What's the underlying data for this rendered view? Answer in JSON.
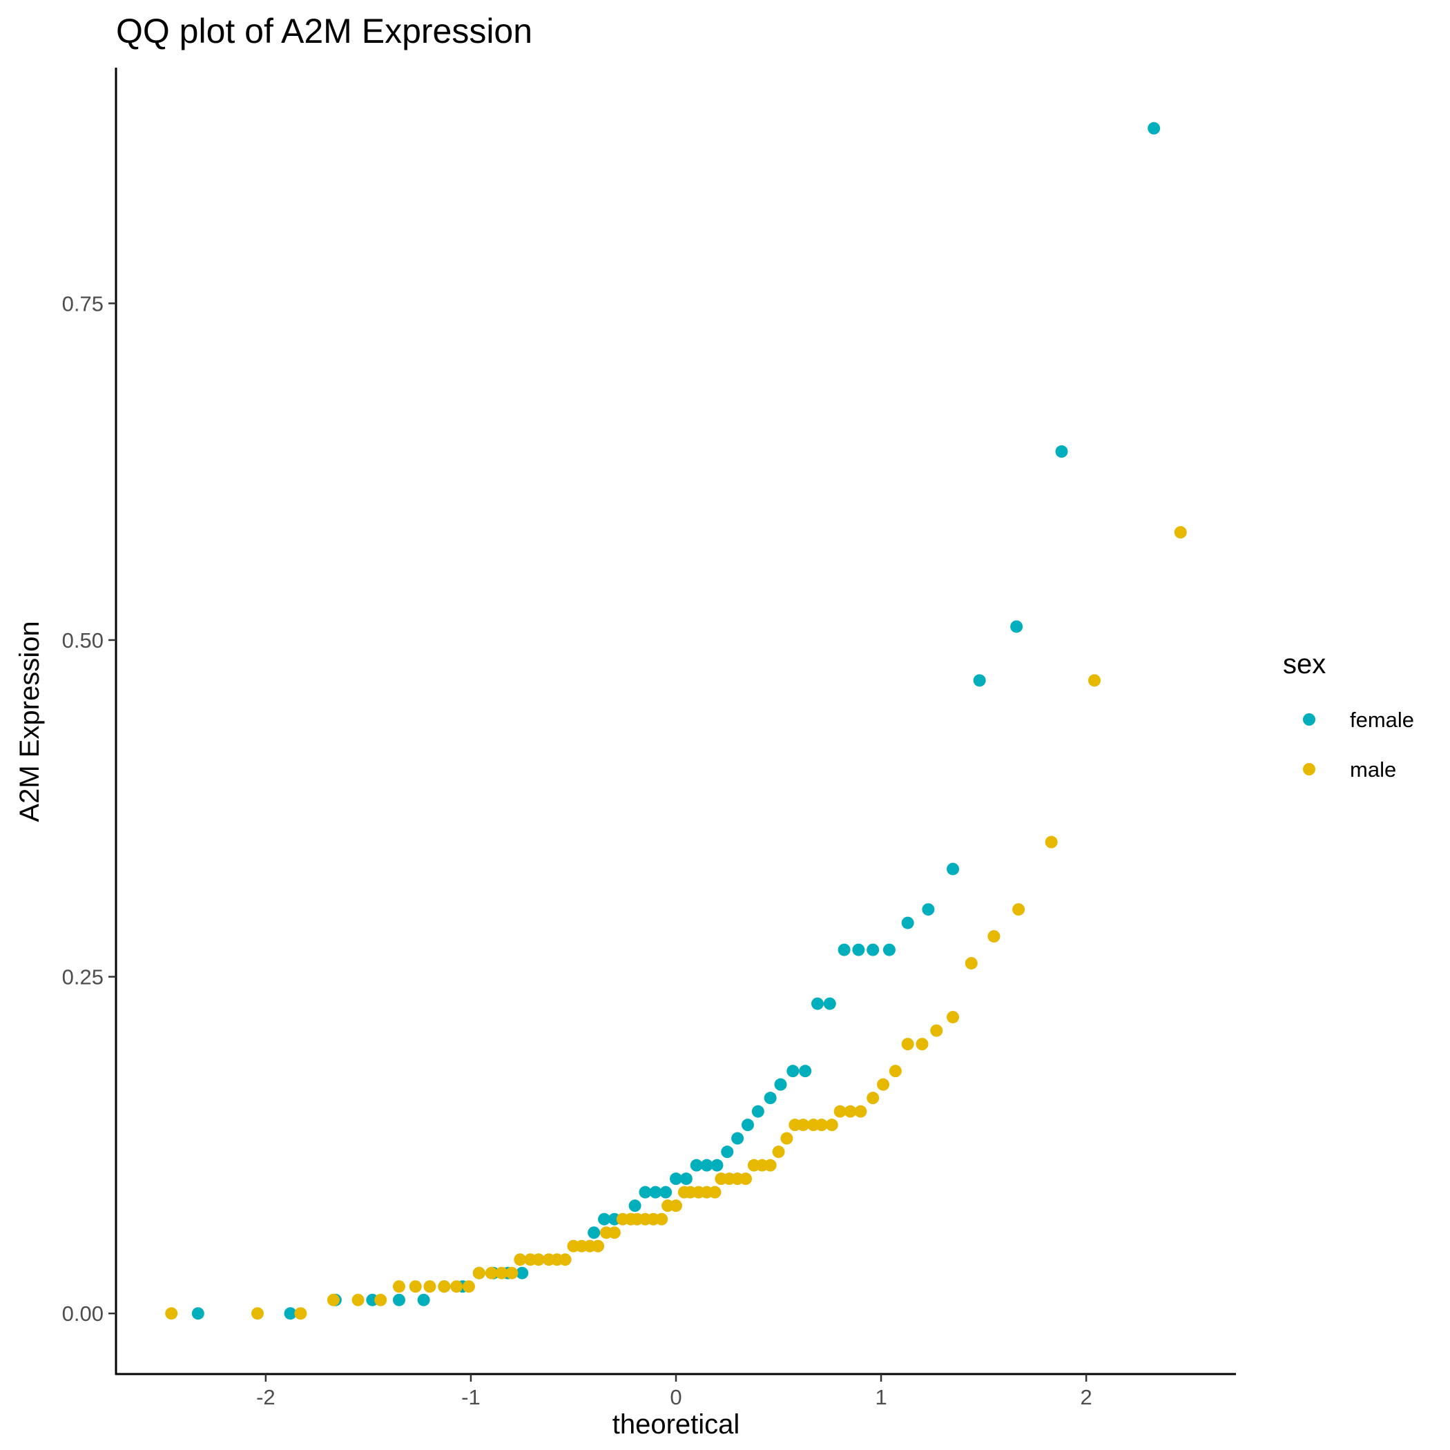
{
  "chart_data": {
    "type": "scatter",
    "title": "QQ plot of A2M Expression",
    "xlabel": "theoretical",
    "ylabel": "A2M Expression",
    "xlim": [
      -2.73,
      2.73
    ],
    "ylim": [
      -0.045,
      0.925
    ],
    "xticks": [
      -2,
      -1,
      0,
      1,
      2
    ],
    "xtick_labels": [
      "-2",
      "-1",
      "0",
      "1",
      "2"
    ],
    "yticks": [
      0,
      0.25,
      0.5,
      0.75
    ],
    "ytick_labels": [
      "0.00",
      "0.25",
      "0.50",
      "0.75"
    ],
    "grid": false,
    "legend": {
      "title": "sex",
      "position": "right"
    },
    "series": [
      {
        "name": "female",
        "color": "#00AFBB",
        "points": [
          [
            -2.33,
            0.0
          ],
          [
            -1.88,
            0.0
          ],
          [
            -1.66,
            0.01
          ],
          [
            -1.48,
            0.01
          ],
          [
            -1.35,
            0.01
          ],
          [
            -1.23,
            0.01
          ],
          [
            -1.13,
            0.02
          ],
          [
            -1.04,
            0.02
          ],
          [
            -0.96,
            0.03
          ],
          [
            -0.89,
            0.03
          ],
          [
            -0.82,
            0.03
          ],
          [
            -0.75,
            0.03
          ],
          [
            -0.4,
            0.06
          ],
          [
            -0.35,
            0.07
          ],
          [
            -0.3,
            0.07
          ],
          [
            -0.2,
            0.08
          ],
          [
            -0.15,
            0.09
          ],
          [
            -0.1,
            0.09
          ],
          [
            -0.05,
            0.09
          ],
          [
            0.0,
            0.1
          ],
          [
            0.05,
            0.1
          ],
          [
            0.1,
            0.11
          ],
          [
            0.15,
            0.11
          ],
          [
            0.2,
            0.11
          ],
          [
            0.25,
            0.12
          ],
          [
            0.3,
            0.13
          ],
          [
            0.35,
            0.14
          ],
          [
            0.4,
            0.15
          ],
          [
            0.46,
            0.16
          ],
          [
            0.51,
            0.17
          ],
          [
            0.57,
            0.18
          ],
          [
            0.63,
            0.18
          ],
          [
            0.69,
            0.23
          ],
          [
            0.75,
            0.23
          ],
          [
            0.82,
            0.27
          ],
          [
            0.89,
            0.27
          ],
          [
            0.96,
            0.27
          ],
          [
            1.04,
            0.27
          ],
          [
            1.13,
            0.29
          ],
          [
            1.23,
            0.3
          ],
          [
            1.35,
            0.33
          ],
          [
            1.48,
            0.47
          ],
          [
            1.66,
            0.51
          ],
          [
            1.88,
            0.64
          ],
          [
            2.33,
            0.88
          ]
        ]
      },
      {
        "name": "male",
        "color": "#E7B800",
        "points": [
          [
            -2.46,
            0.0
          ],
          [
            -2.04,
            0.0
          ],
          [
            -1.83,
            0.0
          ],
          [
            -1.67,
            0.01
          ],
          [
            -1.55,
            0.01
          ],
          [
            -1.44,
            0.01
          ],
          [
            -1.35,
            0.02
          ],
          [
            -1.27,
            0.02
          ],
          [
            -1.2,
            0.02
          ],
          [
            -1.13,
            0.02
          ],
          [
            -1.07,
            0.02
          ],
          [
            -1.01,
            0.02
          ],
          [
            -0.96,
            0.03
          ],
          [
            -0.9,
            0.03
          ],
          [
            -0.85,
            0.03
          ],
          [
            -0.8,
            0.03
          ],
          [
            -0.76,
            0.04
          ],
          [
            -0.71,
            0.04
          ],
          [
            -0.67,
            0.04
          ],
          [
            -0.62,
            0.04
          ],
          [
            -0.58,
            0.04
          ],
          [
            -0.54,
            0.04
          ],
          [
            -0.5,
            0.05
          ],
          [
            -0.46,
            0.05
          ],
          [
            -0.42,
            0.05
          ],
          [
            -0.38,
            0.05
          ],
          [
            -0.34,
            0.06
          ],
          [
            -0.3,
            0.06
          ],
          [
            -0.26,
            0.07
          ],
          [
            -0.22,
            0.07
          ],
          [
            -0.19,
            0.07
          ],
          [
            -0.15,
            0.07
          ],
          [
            -0.11,
            0.07
          ],
          [
            -0.07,
            0.07
          ],
          [
            -0.04,
            0.08
          ],
          [
            0.0,
            0.08
          ],
          [
            0.04,
            0.09
          ],
          [
            0.07,
            0.09
          ],
          [
            0.11,
            0.09
          ],
          [
            0.15,
            0.09
          ],
          [
            0.19,
            0.09
          ],
          [
            0.22,
            0.1
          ],
          [
            0.26,
            0.1
          ],
          [
            0.3,
            0.1
          ],
          [
            0.34,
            0.1
          ],
          [
            0.38,
            0.11
          ],
          [
            0.42,
            0.11
          ],
          [
            0.46,
            0.11
          ],
          [
            0.5,
            0.12
          ],
          [
            0.54,
            0.13
          ],
          [
            0.58,
            0.14
          ],
          [
            0.62,
            0.14
          ],
          [
            0.67,
            0.14
          ],
          [
            0.71,
            0.14
          ],
          [
            0.76,
            0.14
          ],
          [
            0.8,
            0.15
          ],
          [
            0.85,
            0.15
          ],
          [
            0.9,
            0.15
          ],
          [
            0.96,
            0.16
          ],
          [
            1.01,
            0.17
          ],
          [
            1.07,
            0.18
          ],
          [
            1.13,
            0.2
          ],
          [
            1.2,
            0.2
          ],
          [
            1.27,
            0.21
          ],
          [
            1.35,
            0.22
          ],
          [
            1.44,
            0.26
          ],
          [
            1.55,
            0.28
          ],
          [
            1.67,
            0.3
          ],
          [
            1.83,
            0.35
          ],
          [
            2.04,
            0.47
          ],
          [
            2.46,
            0.58
          ]
        ]
      }
    ]
  }
}
